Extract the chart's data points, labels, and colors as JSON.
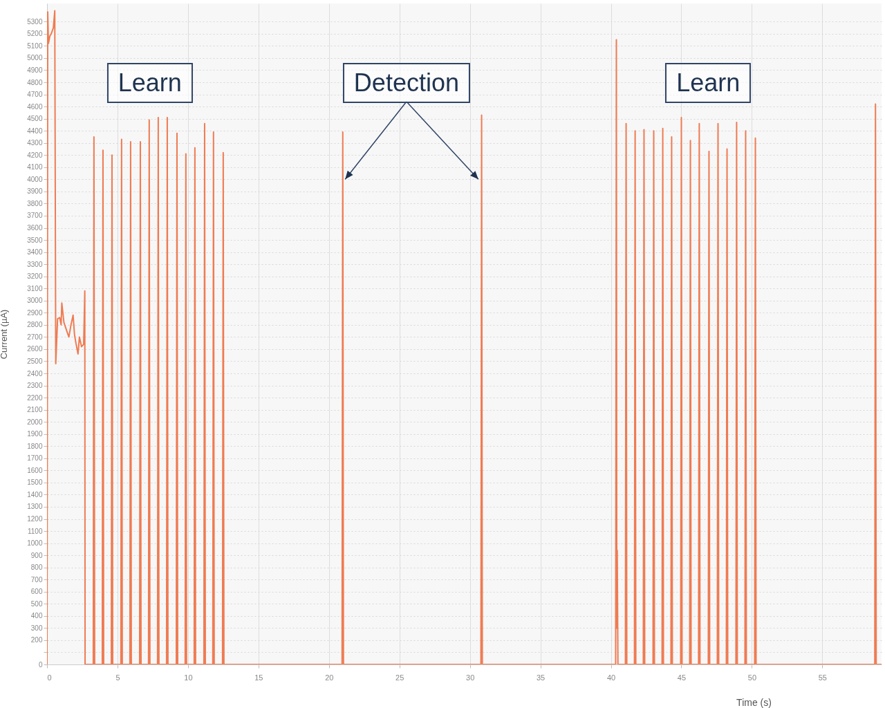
{
  "chart_data": {
    "type": "line",
    "xlabel": "Time (s)",
    "ylabel": "Current (µA)",
    "annotations": [
      "Learn",
      {
        "text": "Detection",
        "x": 21.15,
        "y": 4000
      },
      "Learn"
    ],
    "x": [
      0,
      0.05,
      0.1,
      0.2,
      0.3,
      0.45,
      0.55,
      0.62,
      0.75,
      0.9,
      1.0,
      1.05,
      1.2,
      1.4,
      1.55,
      1.7,
      1.85,
      1.95,
      2.05,
      2.2,
      2.3,
      2.45,
      2.6,
      2.68,
      2.7,
      3.28,
      3.33,
      3.38,
      3.92,
      3.97,
      4.02,
      4.56,
      4.61,
      4.66,
      5.24,
      5.29,
      5.34,
      5.88,
      5.93,
      5.98,
      6.57,
      6.62,
      6.67,
      7.2,
      7.25,
      7.3,
      7.84,
      7.89,
      7.94,
      8.48,
      8.53,
      8.58,
      9.17,
      9.22,
      9.27,
      9.8,
      9.85,
      9.9,
      10.44,
      10.49,
      10.54,
      11.13,
      11.18,
      11.23,
      11.76,
      11.81,
      11.86,
      12.45,
      12.5,
      12.55,
      20.93,
      20.98,
      21.03,
      30.78,
      30.83,
      30.88,
      40.34,
      40.39,
      40.42,
      40.45,
      40.5,
      41.03,
      41.08,
      41.13,
      41.67,
      41.72,
      41.77,
      42.3,
      42.35,
      42.4,
      42.99,
      43.04,
      43.09,
      43.63,
      43.68,
      43.73,
      44.26,
      44.31,
      44.36,
      44.95,
      45.0,
      45.05,
      45.59,
      45.64,
      45.69,
      46.22,
      46.27,
      46.32,
      46.91,
      46.96,
      47.01,
      47.55,
      47.6,
      47.65,
      48.19,
      48.24,
      48.29,
      48.87,
      48.92,
      48.97,
      49.51,
      49.56,
      49.61,
      50.2,
      50.25,
      50.3,
      58.72,
      58.77,
      58.82,
      59.2
    ],
    "series": [
      {
        "color": "#ef7b52",
        "values": [
          0,
          5380,
          5120,
          5180,
          5200,
          5250,
          5390,
          2480,
          2850,
          2860,
          2800,
          2980,
          2820,
          2750,
          2700,
          2800,
          2880,
          2720,
          2650,
          2560,
          2700,
          2620,
          2640,
          3080,
          0,
          0,
          4350,
          0,
          0,
          4240,
          0,
          0,
          4200,
          0,
          0,
          4330,
          0,
          0,
          4310,
          0,
          0,
          4310,
          0,
          0,
          4490,
          0,
          0,
          4510,
          0,
          0,
          4510,
          0,
          0,
          4380,
          0,
          0,
          4210,
          0,
          0,
          4260,
          0,
          0,
          4460,
          0,
          0,
          4390,
          0,
          0,
          4220,
          0,
          0,
          4390,
          0,
          0,
          4530,
          0,
          0,
          5150,
          300,
          940,
          0,
          0,
          4460,
          0,
          0,
          4400,
          0,
          0,
          4410,
          0,
          0,
          4400,
          0,
          0,
          4420,
          0,
          0,
          4350,
          0,
          0,
          4510,
          0,
          0,
          4320,
          0,
          0,
          4460,
          0,
          0,
          4230,
          0,
          0,
          4460,
          0,
          0,
          4250,
          0,
          0,
          4470,
          0,
          0,
          4400,
          0,
          0,
          4340,
          0,
          0,
          4620,
          0,
          0
        ]
      }
    ],
    "xlim": [
      0,
      59.2
    ],
    "xticks": [
      0,
      5,
      10,
      15,
      20,
      25,
      30,
      35,
      40,
      45,
      50,
      55
    ],
    "ylim": [
      0,
      5450
    ],
    "yticks": [
      0,
      {
        "value": 100,
        "label": null
      },
      200,
      300,
      400,
      500,
      600,
      700,
      800,
      900,
      1000,
      1100,
      1200,
      1300,
      1400,
      1500,
      1600,
      1700,
      1800,
      1900,
      2000,
      2100,
      2200,
      2300,
      2400,
      2500,
      2600,
      2700,
      2800,
      2900,
      3000,
      3100,
      3200,
      3300,
      3400,
      3500,
      3600,
      3700,
      3800,
      3900,
      4000,
      4100,
      4200,
      4300,
      4400,
      4500,
      4600,
      4700,
      4800,
      4900,
      5000,
      5100,
      5200,
      5300
    ],
    "grid": true,
    "marker": "none",
    "line_style": "solid"
  }
}
